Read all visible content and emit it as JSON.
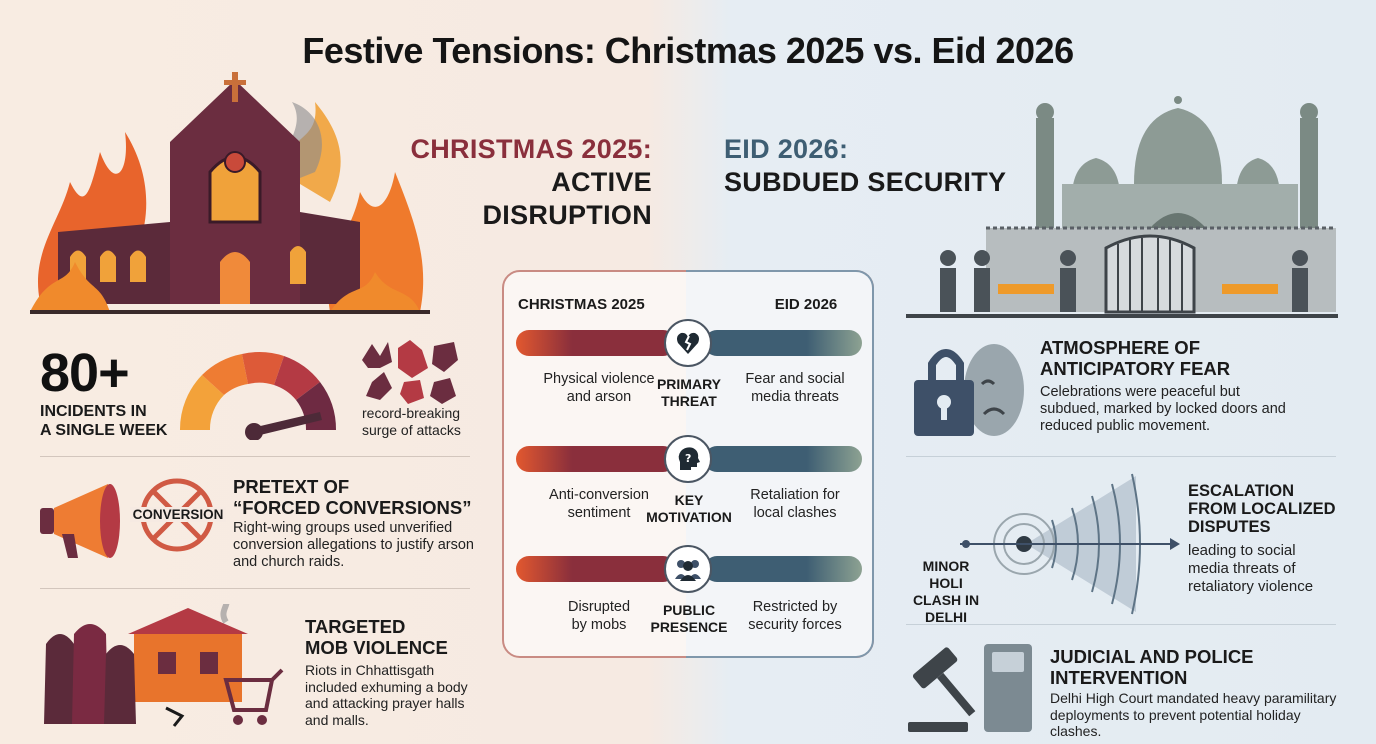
{
  "title": "Festive Tensions: Christmas 2025 vs. Eid 2026",
  "left": {
    "heading_line1": "CHRISTMAS 2025:",
    "heading_line2": "ACTIVE DISRUPTION",
    "stat_number": "80+",
    "stat_label_line1": "INCIDENTS IN",
    "stat_label_line2": "A SINGLE WEEK",
    "stat_note_line1": "record-breaking",
    "stat_note_line2": "surge of attacks",
    "conversion_badge": "CONVERSION",
    "pretext_title_line1": "PRETEXT OF",
    "pretext_title_line2": "“FORCED CONVERSIONS”",
    "pretext_body_line1": "Right-wing groups used unverified",
    "pretext_body_line2": "conversion allegations to justify arson",
    "pretext_body_line3": "and church raids.",
    "mob_title_line1": "TARGETED",
    "mob_title_line2": "MOB VIOLENCE",
    "mob_body_line1": "Riots in Chhattisgath",
    "mob_body_line2": "included exhuming a body",
    "mob_body_line3": "and attacking prayer halls",
    "mob_body_line4": "and malls."
  },
  "right": {
    "heading_line1": "EID 2026:",
    "heading_line2": "SUBDUED SECURITY",
    "fear_title_line1": "ATMOSPHERE OF",
    "fear_title_line2": "ANTICIPATORY FEAR",
    "fear_body_line1": "Celebrations were peaceful but",
    "fear_body_line2": "subdued, marked by locked doors and",
    "fear_body_line3": "reduced public movement.",
    "origin_line1": "MINOR HOLI",
    "origin_line2": "CLASH IN",
    "origin_line3": "DELHI",
    "escalation_title_line1": "ESCALATION",
    "escalation_title_line2": "FROM LOCALIZED",
    "escalation_title_line3": "DISPUTES",
    "escalation_body_line1": "leading to social",
    "escalation_body_line2": "media threats of",
    "escalation_body_line3": "retaliatory violence",
    "judicial_title_line1": "JUDICIAL AND POLICE",
    "judicial_title_line2": "INTERVENTION",
    "judicial_body_line1": "Delhi High Court mandated heavy paramilitary",
    "judicial_body_line2": "deployments to prevent potential holiday",
    "judicial_body_line3": "clashes."
  },
  "comparison": {
    "left_header": "CHRISTMAS 2025",
    "right_header": "EID 2026",
    "rows": [
      {
        "icon": "broken-heart-icon",
        "left_line1": "Physical violence",
        "left_line2": "and arson",
        "mid_line1": "PRIMARY",
        "mid_line2": "THREAT",
        "right_line1": "Fear and social",
        "right_line2": "media threats"
      },
      {
        "icon": "question-head-icon",
        "left_line1": "Anti-conversion",
        "left_line2": "sentiment",
        "mid_line1": "KEY",
        "mid_line2": "MOTIVATION",
        "right_line1": "Retaliation for",
        "right_line2": "local clashes"
      },
      {
        "icon": "people-group-icon",
        "left_line1": "Disrupted",
        "left_line2": "by mobs",
        "mid_line1": "PUBLIC",
        "mid_line2": "PRESENCE",
        "right_line1": "Restricted by",
        "right_line2": "security forces"
      }
    ]
  },
  "colors": {
    "christmas_accent": "#8a2f3c",
    "eid_accent": "#3e5e73",
    "fire_orange": "#e8642c"
  }
}
